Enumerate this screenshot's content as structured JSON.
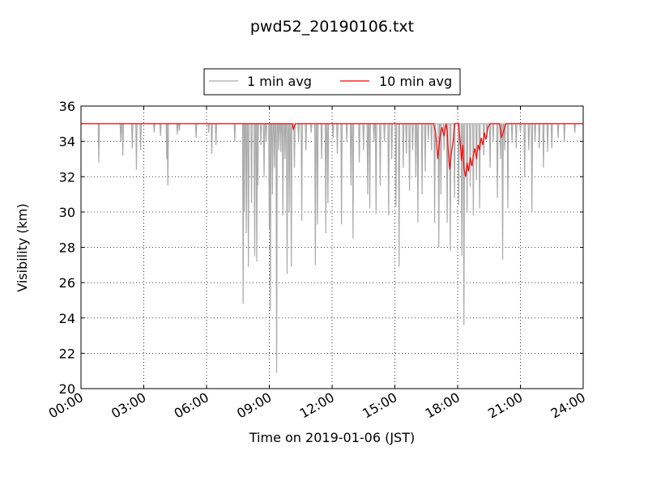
{
  "chart_data": {
    "type": "line",
    "title": "pwd52_20190106.txt",
    "xlabel": "Time on 2019-01-06 (JST)",
    "ylabel": "Visibility (km)",
    "xlim": [
      0,
      24
    ],
    "ylim": [
      20,
      36
    ],
    "grid": true,
    "legend_position": "top-center",
    "x_ticks": [
      {
        "value": 0,
        "label": "00:00"
      },
      {
        "value": 3,
        "label": "03:00"
      },
      {
        "value": 6,
        "label": "06:00"
      },
      {
        "value": 9,
        "label": "09:00"
      },
      {
        "value": 12,
        "label": "12:00"
      },
      {
        "value": 15,
        "label": "15:00"
      },
      {
        "value": 18,
        "label": "18:00"
      },
      {
        "value": 21,
        "label": "21:00"
      },
      {
        "value": 24,
        "label": "24:00"
      }
    ],
    "y_ticks": [
      {
        "value": 20,
        "label": "20"
      },
      {
        "value": 22,
        "label": "22"
      },
      {
        "value": 24,
        "label": "24"
      },
      {
        "value": 26,
        "label": "26"
      },
      {
        "value": 28,
        "label": "28"
      },
      {
        "value": 30,
        "label": "30"
      },
      {
        "value": 32,
        "label": "32"
      },
      {
        "value": 34,
        "label": "34"
      },
      {
        "value": 36,
        "label": "36"
      }
    ],
    "series": [
      {
        "name": "1 min avg",
        "color": "#aaaaaa",
        "baseline": 35,
        "dips": [
          [
            0.85,
            32.8
          ],
          [
            1.9,
            34.0
          ],
          [
            2.0,
            33.2
          ],
          [
            2.45,
            33.6
          ],
          [
            2.65,
            32.4
          ],
          [
            2.85,
            33.5
          ],
          [
            3.5,
            34.5
          ],
          [
            3.8,
            34.3
          ],
          [
            4.1,
            33.0
          ],
          [
            4.15,
            31.5
          ],
          [
            4.6,
            34.4
          ],
          [
            4.7,
            34.6
          ],
          [
            5.5,
            34.2
          ],
          [
            6.1,
            34.5
          ],
          [
            6.25,
            33.3
          ],
          [
            6.45,
            33.8
          ],
          [
            7.35,
            34.0
          ],
          [
            7.75,
            24.8
          ],
          [
            7.8,
            30.0
          ],
          [
            7.9,
            28.8
          ],
          [
            8.0,
            26.9
          ],
          [
            8.15,
            30.5
          ],
          [
            8.3,
            27.5
          ],
          [
            8.4,
            27.2
          ],
          [
            8.45,
            31.5
          ],
          [
            8.6,
            33.8
          ],
          [
            8.75,
            32.0
          ],
          [
            8.85,
            34.0
          ],
          [
            9.0,
            29.0
          ],
          [
            9.05,
            24.4
          ],
          [
            9.15,
            31.0
          ],
          [
            9.25,
            32.5
          ],
          [
            9.35,
            20.9
          ],
          [
            9.45,
            33.5
          ],
          [
            9.55,
            33.4
          ],
          [
            9.65,
            29.8
          ],
          [
            9.75,
            33.0
          ],
          [
            9.85,
            26.5
          ],
          [
            9.95,
            30.0
          ],
          [
            10.05,
            26.9
          ],
          [
            10.2,
            32.5
          ],
          [
            10.4,
            34.0
          ],
          [
            10.55,
            29.5
          ],
          [
            10.75,
            33.5
          ],
          [
            11.0,
            34.5
          ],
          [
            11.2,
            27.0
          ],
          [
            11.3,
            29.3
          ],
          [
            11.5,
            33.0
          ],
          [
            11.7,
            28.8
          ],
          [
            11.8,
            30.5
          ],
          [
            12.05,
            34.2
          ],
          [
            12.25,
            33.3
          ],
          [
            12.45,
            29.3
          ],
          [
            12.7,
            34.0
          ],
          [
            12.9,
            31.5
          ],
          [
            13.0,
            28.5
          ],
          [
            13.3,
            32.8
          ],
          [
            13.5,
            33.5
          ],
          [
            13.7,
            31.0
          ],
          [
            13.8,
            30.2
          ],
          [
            14.0,
            34.0
          ],
          [
            14.1,
            29.9
          ],
          [
            14.3,
            31.5
          ],
          [
            14.5,
            34.0
          ],
          [
            14.7,
            29.8
          ],
          [
            14.85,
            33.0
          ],
          [
            15.05,
            30.3
          ],
          [
            15.2,
            26.9
          ],
          [
            15.4,
            32.5
          ],
          [
            15.55,
            33.3
          ],
          [
            15.7,
            31.2
          ],
          [
            15.85,
            33.5
          ],
          [
            16.0,
            32.0
          ],
          [
            16.1,
            29.4
          ],
          [
            16.3,
            31.0
          ],
          [
            16.45,
            32.3
          ],
          [
            16.6,
            34.1
          ],
          [
            16.75,
            33.5
          ],
          [
            16.9,
            29.4
          ],
          [
            17.1,
            28.0
          ],
          [
            17.2,
            31.0
          ],
          [
            17.35,
            33.5
          ],
          [
            17.5,
            29.4
          ],
          [
            17.65,
            27.8
          ],
          [
            17.85,
            30.8
          ],
          [
            18.05,
            30.4
          ],
          [
            18.2,
            27.5
          ],
          [
            18.3,
            23.6
          ],
          [
            18.45,
            30.0
          ],
          [
            18.6,
            31.4
          ],
          [
            18.75,
            29.8
          ],
          [
            18.9,
            31.8
          ],
          [
            19.05,
            30.2
          ],
          [
            19.25,
            33.2
          ],
          [
            19.4,
            34.2
          ],
          [
            19.55,
            32.5
          ],
          [
            19.7,
            34.0
          ],
          [
            19.9,
            30.8
          ],
          [
            20.05,
            33.0
          ],
          [
            20.15,
            27.3
          ],
          [
            20.25,
            33.5
          ],
          [
            20.4,
            30.2
          ],
          [
            20.6,
            33.9
          ],
          [
            20.8,
            33.6
          ],
          [
            21.0,
            34.5
          ],
          [
            21.2,
            32.0
          ],
          [
            21.4,
            33.5
          ],
          [
            21.55,
            30.0
          ],
          [
            21.7,
            34.0
          ],
          [
            21.9,
            33.6
          ],
          [
            22.1,
            32.5
          ],
          [
            22.3,
            33.4
          ],
          [
            22.5,
            33.6
          ],
          [
            22.8,
            34.2
          ],
          [
            23.1,
            34.0
          ],
          [
            23.6,
            34.5
          ]
        ]
      },
      {
        "name": "10 min avg",
        "color": "#ff0000",
        "points": [
          [
            0,
            35.0
          ],
          [
            10.1,
            35.0
          ],
          [
            10.15,
            34.7
          ],
          [
            10.25,
            35.0
          ],
          [
            16.85,
            35.0
          ],
          [
            16.95,
            34.5
          ],
          [
            17.05,
            33.0
          ],
          [
            17.15,
            34.2
          ],
          [
            17.25,
            34.8
          ],
          [
            17.35,
            34.3
          ],
          [
            17.45,
            35.0
          ],
          [
            17.5,
            34.6
          ],
          [
            17.55,
            33.5
          ],
          [
            17.62,
            32.4
          ],
          [
            17.7,
            33.3
          ],
          [
            17.78,
            34.0
          ],
          [
            17.85,
            35.0
          ],
          [
            18.05,
            35.0
          ],
          [
            18.12,
            34.0
          ],
          [
            18.18,
            32.9
          ],
          [
            18.25,
            33.8
          ],
          [
            18.3,
            32.5
          ],
          [
            18.38,
            32.0
          ],
          [
            18.45,
            32.8
          ],
          [
            18.52,
            32.3
          ],
          [
            18.6,
            33.1
          ],
          [
            18.68,
            32.6
          ],
          [
            18.75,
            33.2
          ],
          [
            18.82,
            33.6
          ],
          [
            18.9,
            33.0
          ],
          [
            18.98,
            33.8
          ],
          [
            19.05,
            33.5
          ],
          [
            19.12,
            34.2
          ],
          [
            19.2,
            33.8
          ],
          [
            19.28,
            34.5
          ],
          [
            19.35,
            34.1
          ],
          [
            19.45,
            34.8
          ],
          [
            19.55,
            35.0
          ],
          [
            20.0,
            35.0
          ],
          [
            20.1,
            34.2
          ],
          [
            20.2,
            34.6
          ],
          [
            20.3,
            35.0
          ],
          [
            24.0,
            35.0
          ]
        ]
      }
    ]
  }
}
